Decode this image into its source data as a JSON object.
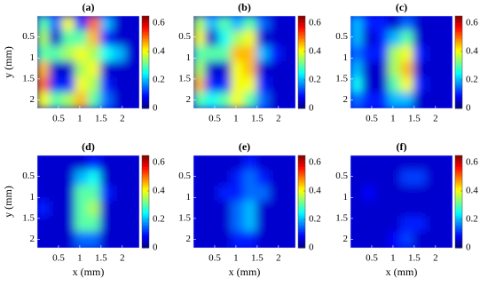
{
  "chart_data": {
    "type": "heatmap",
    "xlabel": "x (mm)",
    "ylabel": "y (mm)",
    "xlim": [
      0,
      2.4
    ],
    "ylim": [
      0,
      2.2
    ],
    "y_inverted": true,
    "xticks": [
      0.5,
      1,
      1.5,
      2
    ],
    "yticks": [
      0.5,
      1,
      1.5,
      2
    ],
    "clim": [
      0,
      0.65
    ],
    "cticks": [
      0,
      0.2,
      0.4,
      0.6
    ],
    "colormap": "jet",
    "panels": [
      {
        "label": "(a)",
        "z": [
          [
            0.3,
            0.15,
            0.4,
            0.1,
            0.5,
            0.2,
            0.05,
            0.05
          ],
          [
            0.35,
            0.05,
            0.3,
            0.3,
            0.45,
            0.1,
            0.05,
            0.05
          ],
          [
            0.3,
            0.3,
            0.35,
            0.4,
            0.35,
            0.25,
            0.2,
            0.05
          ],
          [
            0.45,
            0.05,
            0.05,
            0.35,
            0.4,
            0.05,
            0.05,
            0.05
          ],
          [
            0.5,
            0.1,
            0.1,
            0.4,
            0.35,
            0.1,
            0.05,
            0.05
          ],
          [
            0.4,
            0.3,
            0.35,
            0.45,
            0.3,
            0.15,
            0.05,
            0.05
          ]
        ]
      },
      {
        "label": "(b)",
        "z": [
          [
            0.35,
            0.2,
            0.3,
            0.2,
            0.3,
            0.15,
            0.05,
            0.05
          ],
          [
            0.4,
            0.05,
            0.25,
            0.35,
            0.4,
            0.05,
            0.05,
            0.05
          ],
          [
            0.3,
            0.3,
            0.3,
            0.45,
            0.45,
            0.2,
            0.1,
            0.05
          ],
          [
            0.35,
            0.05,
            0.05,
            0.4,
            0.45,
            0.05,
            0.05,
            0.05
          ],
          [
            0.45,
            0.1,
            0.1,
            0.4,
            0.4,
            0.1,
            0.05,
            0.05
          ],
          [
            0.3,
            0.25,
            0.3,
            0.4,
            0.3,
            0.15,
            0.05,
            0.05
          ]
        ]
      },
      {
        "label": "(c)",
        "z": [
          [
            0.2,
            0.1,
            0.1,
            0.05,
            0.15,
            0.05,
            0.05,
            0.05
          ],
          [
            0.2,
            0.05,
            0.1,
            0.2,
            0.3,
            0.05,
            0.05,
            0.05
          ],
          [
            0.15,
            0.1,
            0.1,
            0.35,
            0.4,
            0.1,
            0.05,
            0.05
          ],
          [
            0.2,
            0.05,
            0.05,
            0.35,
            0.45,
            0.05,
            0.05,
            0.05
          ],
          [
            0.25,
            0.05,
            0.05,
            0.3,
            0.4,
            0.1,
            0.05,
            0.05
          ],
          [
            0.15,
            0.1,
            0.1,
            0.2,
            0.2,
            0.05,
            0.05,
            0.05
          ]
        ]
      },
      {
        "label": "(d)",
        "z": [
          [
            0.05,
            0.05,
            0.05,
            0.05,
            0.1,
            0.05,
            0.05,
            0.05
          ],
          [
            0.05,
            0.05,
            0.05,
            0.2,
            0.25,
            0.05,
            0.05,
            0.05
          ],
          [
            0.05,
            0.05,
            0.05,
            0.3,
            0.3,
            0.1,
            0.05,
            0.05
          ],
          [
            0.1,
            0.05,
            0.05,
            0.3,
            0.35,
            0.05,
            0.05,
            0.05
          ],
          [
            0.05,
            0.05,
            0.05,
            0.3,
            0.3,
            0.05,
            0.05,
            0.05
          ],
          [
            0.05,
            0.05,
            0.05,
            0.15,
            0.15,
            0.05,
            0.05,
            0.05
          ]
        ]
      },
      {
        "label": "(e)",
        "z": [
          [
            0.05,
            0.05,
            0.05,
            0.05,
            0.1,
            0.05,
            0.05,
            0.05
          ],
          [
            0.05,
            0.05,
            0.05,
            0.1,
            0.15,
            0.1,
            0.05,
            0.05
          ],
          [
            0.05,
            0.05,
            0.1,
            0.1,
            0.15,
            0.15,
            0.05,
            0.05
          ],
          [
            0.05,
            0.05,
            0.05,
            0.15,
            0.2,
            0.05,
            0.05,
            0.05
          ],
          [
            0.05,
            0.05,
            0.05,
            0.15,
            0.2,
            0.05,
            0.05,
            0.05
          ],
          [
            0.05,
            0.05,
            0.05,
            0.1,
            0.1,
            0.05,
            0.05,
            0.05
          ]
        ]
      },
      {
        "label": "(f)",
        "z": [
          [
            0.05,
            0.05,
            0.05,
            0.05,
            0.05,
            0.05,
            0.05,
            0.05
          ],
          [
            0.05,
            0.05,
            0.05,
            0.05,
            0.12,
            0.12,
            0.05,
            0.05
          ],
          [
            0.05,
            0.08,
            0.05,
            0.05,
            0.05,
            0.05,
            0.05,
            0.05
          ],
          [
            0.05,
            0.05,
            0.05,
            0.05,
            0.05,
            0.05,
            0.05,
            0.05
          ],
          [
            0.05,
            0.05,
            0.05,
            0.05,
            0.1,
            0.1,
            0.05,
            0.05
          ],
          [
            0.05,
            0.05,
            0.05,
            0.08,
            0.12,
            0.05,
            0.05,
            0.05
          ]
        ]
      }
    ]
  }
}
